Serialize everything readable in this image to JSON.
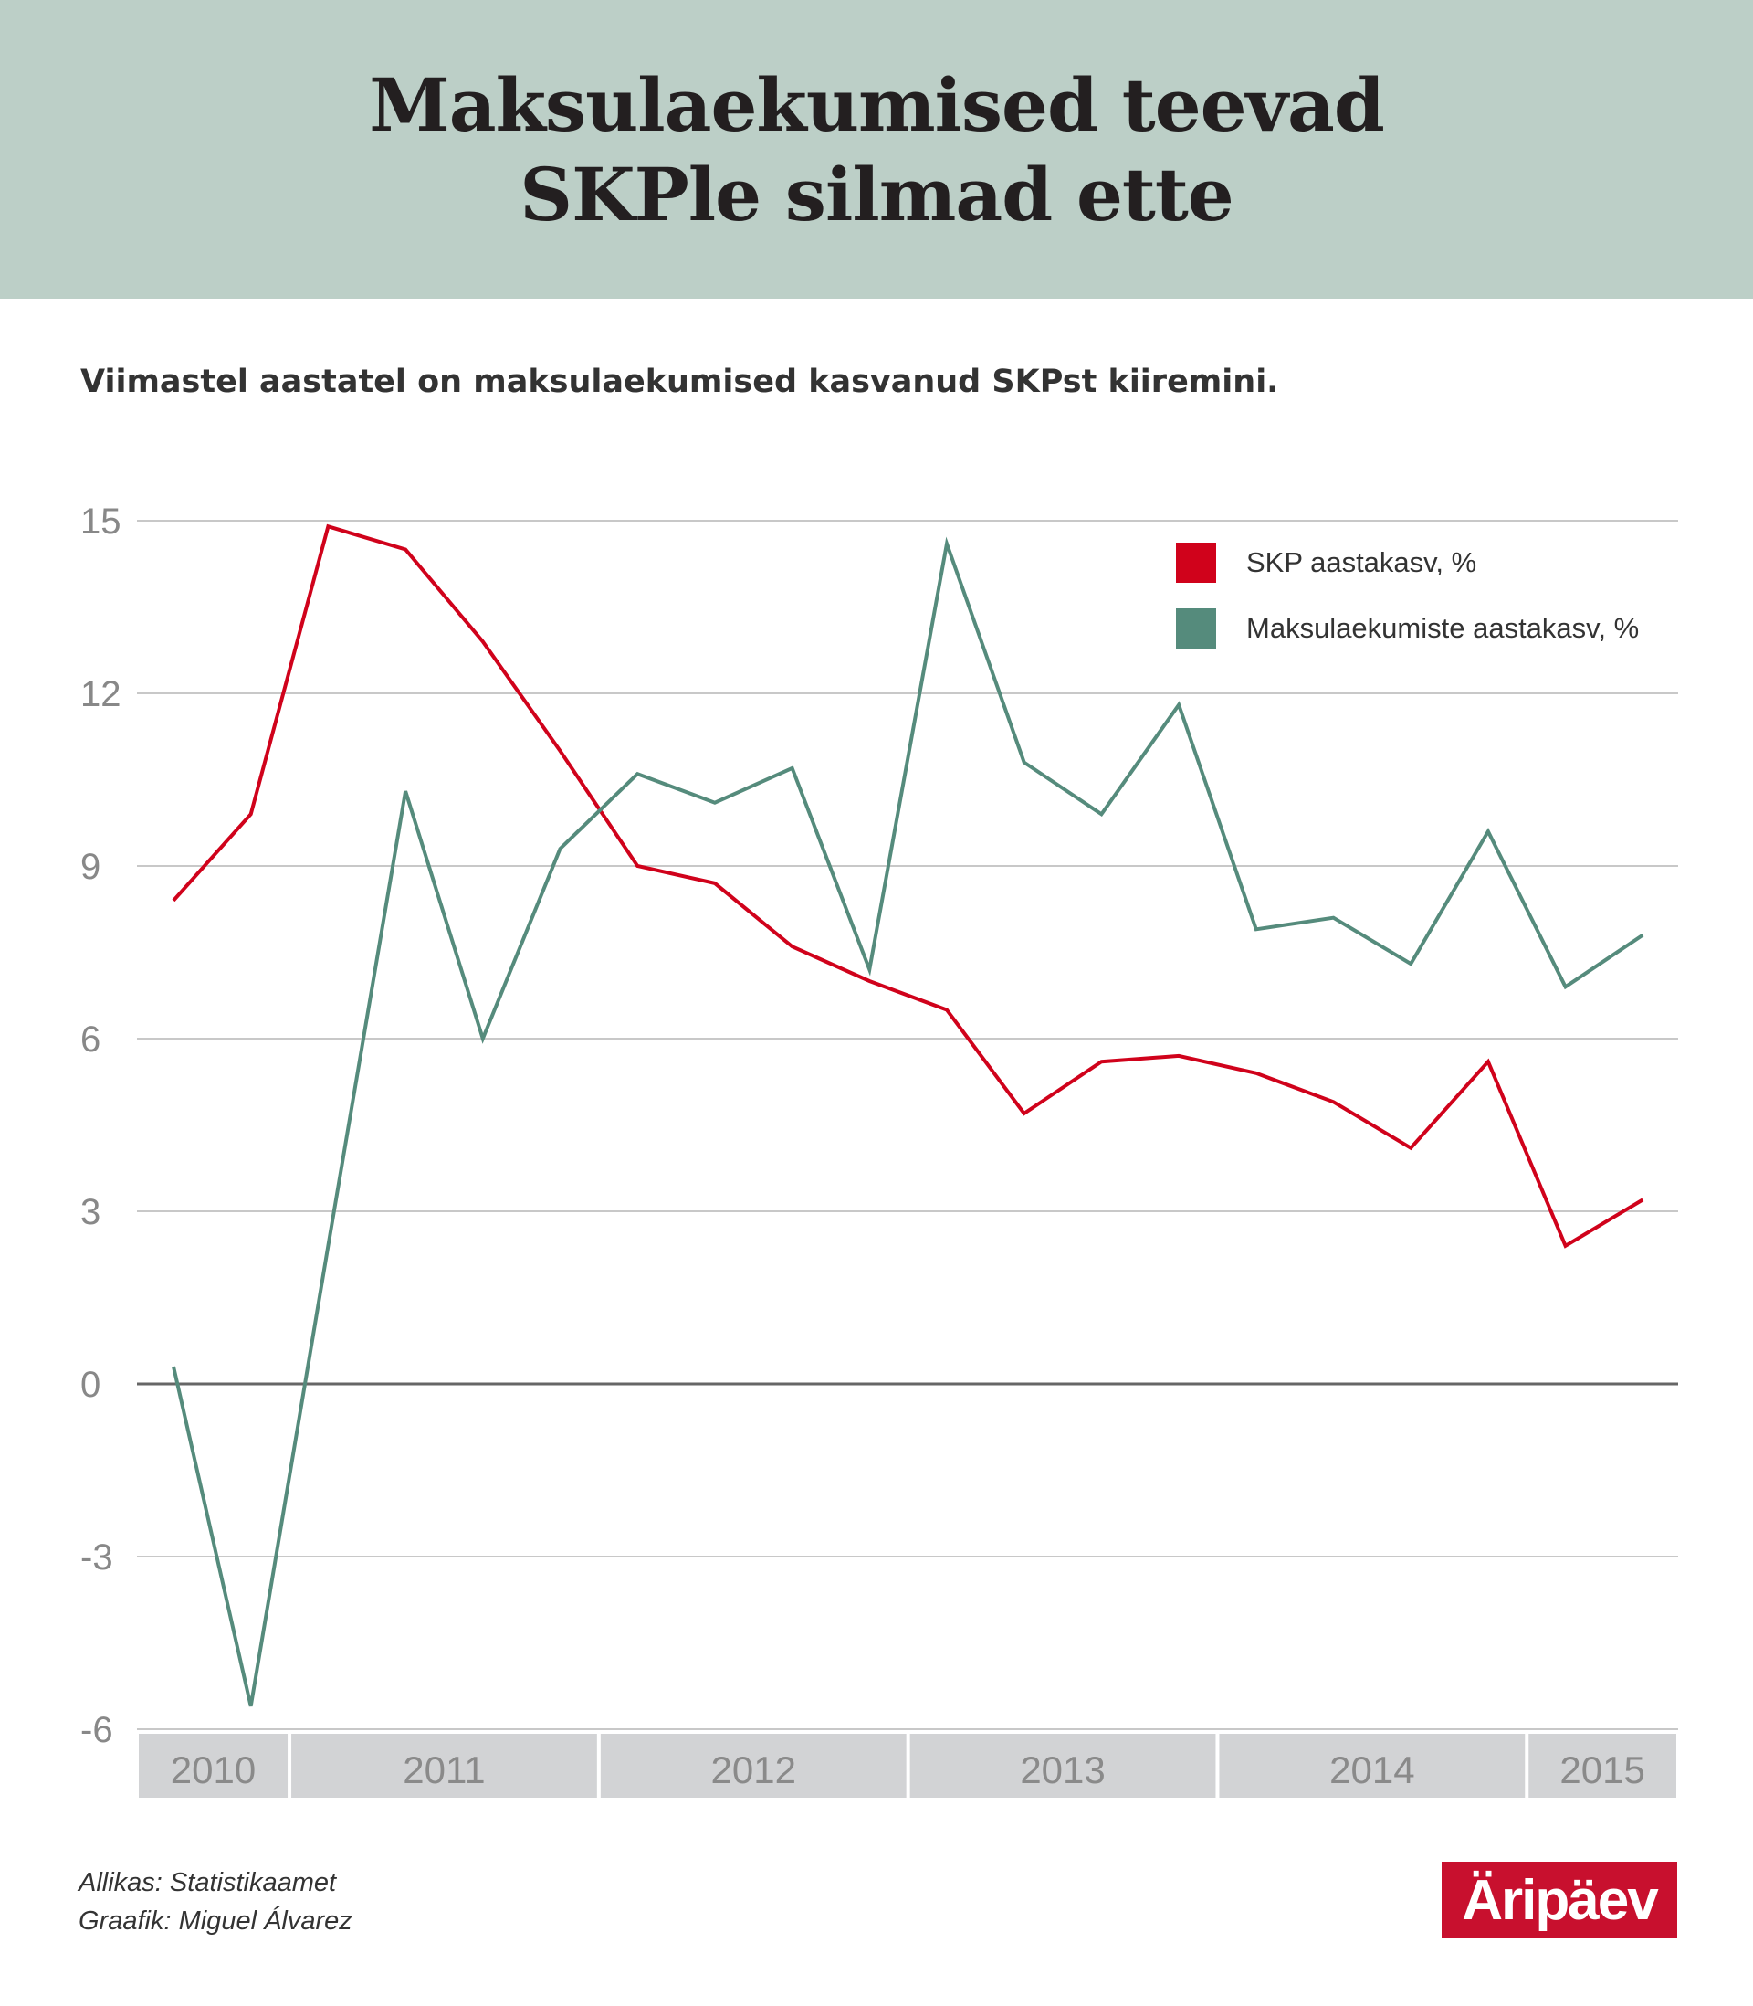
{
  "header": {
    "title_line1": "Maksulaekumised teevad",
    "title_line2": "SKPle silmad ette"
  },
  "subtitle": "Viimastel aastatel on maksulaekumised kasvanud SKPst kiiremini.",
  "footer": {
    "source": "Allikas: Statistikaamet",
    "author": "Graafik: Miguel Álvarez",
    "logo": "Äripäev"
  },
  "chart_data": {
    "type": "line",
    "ylim": [
      -6,
      15
    ],
    "yticks": [
      15,
      12,
      9,
      6,
      3,
      0,
      -3,
      -6
    ],
    "year_labels": [
      "2010",
      "2011",
      "2012",
      "2013",
      "2014",
      "2015"
    ],
    "year_quarter_counts": [
      2,
      4,
      4,
      4,
      4,
      2
    ],
    "x": [
      "2010 Q3",
      "2010 Q4",
      "2011 Q1",
      "2011 Q2",
      "2011 Q3",
      "2011 Q4",
      "2012 Q1",
      "2012 Q2",
      "2012 Q3",
      "2012 Q4",
      "2013 Q1",
      "2013 Q2",
      "2013 Q3",
      "2013 Q4",
      "2014 Q1",
      "2014 Q2",
      "2014 Q3",
      "2014 Q4",
      "2015 Q1",
      "2015 Q2"
    ],
    "legend_position": "top-right",
    "grid": true,
    "series": [
      {
        "name": "SKP aastakasv, %",
        "color": "#d0021b",
        "values": [
          8.4,
          9.9,
          14.9,
          14.5,
          12.9,
          11.0,
          9.0,
          8.7,
          7.6,
          7.0,
          6.5,
          4.7,
          5.6,
          5.7,
          5.4,
          4.9,
          4.1,
          5.6,
          2.4,
          3.2
        ]
      },
      {
        "name": "Maksulaekumiste aastakasv, %",
        "color": "#558b7c",
        "values": [
          0.3,
          -5.6,
          2.4,
          10.3,
          6.0,
          9.3,
          10.6,
          10.1,
          10.7,
          7.2,
          14.6,
          10.8,
          9.9,
          11.8,
          7.9,
          8.1,
          7.3,
          9.6,
          6.9,
          7.8
        ]
      }
    ]
  }
}
